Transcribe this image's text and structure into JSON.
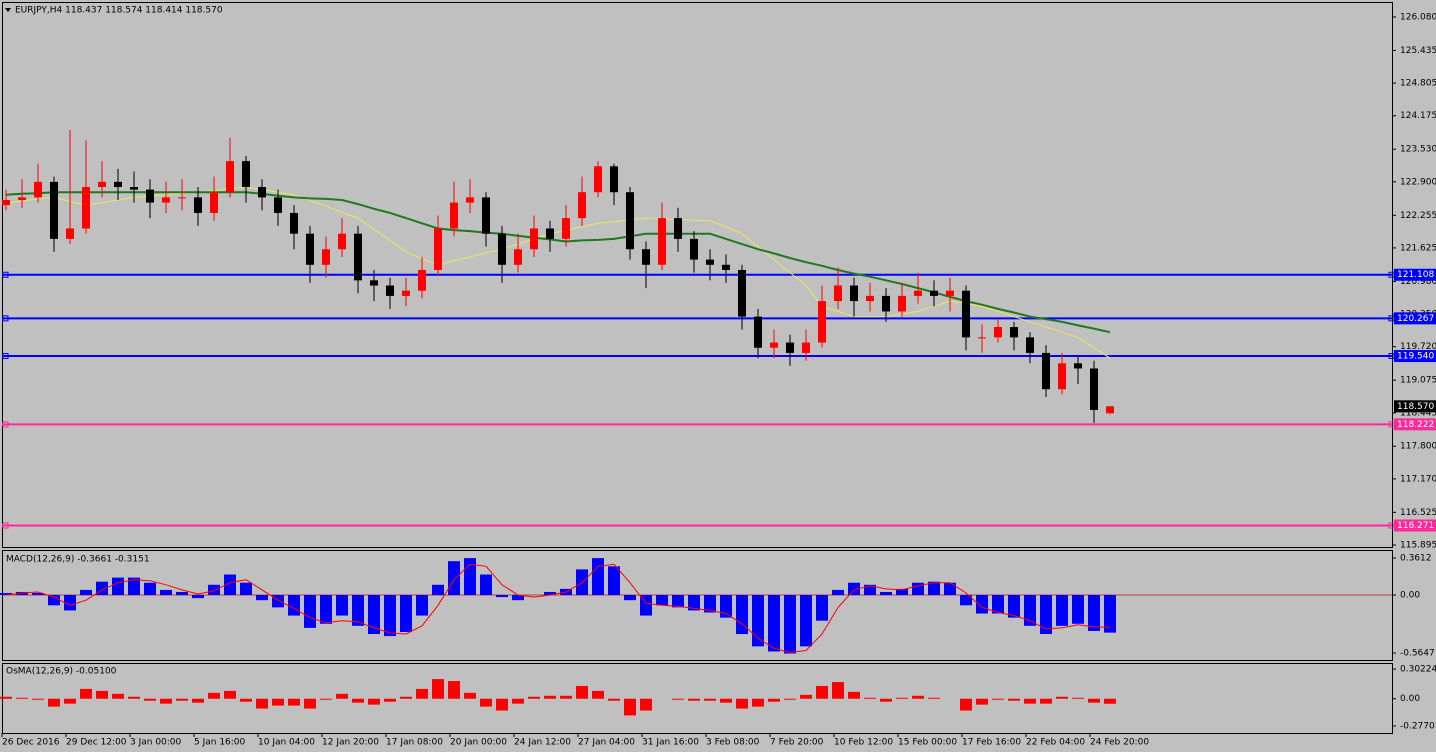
{
  "chart_data": [
    {
      "type": "candlestick",
      "title": "EURJPY,H4  118.437 118.574 118.414 118.570",
      "categories": [
        "26 Dec 2016",
        null,
        null,
        null,
        "29 Dec 12:00",
        null,
        null,
        null,
        "3 Jan 00:00",
        null,
        null,
        null,
        "5 Jan 16:00",
        null,
        null,
        null,
        "10 Jan 04:00",
        null,
        null,
        null,
        "12 Jan 20:00",
        null,
        null,
        null,
        "17 Jan 08:00",
        null,
        null,
        null,
        "20 Jan 00:00",
        null,
        null,
        null,
        "24 Jan 12:00",
        null,
        null,
        null,
        "27 Jan 04:00",
        null,
        null,
        null,
        "31 Jan 16:00",
        null,
        null,
        null,
        "3 Feb 08:00",
        null,
        null,
        null,
        "7 Feb 20:00",
        null,
        null,
        null,
        "10 Feb 12:00",
        null,
        null,
        null,
        "15 Feb 00:00",
        null,
        null,
        null,
        "17 Feb 16:00",
        null,
        null,
        null,
        "22 Feb 04:00",
        null,
        null,
        null,
        "24 Feb 20:00",
        null
      ],
      "open": [
        122.45,
        122.55,
        122.6,
        122.9,
        121.8,
        122.0,
        122.8,
        122.9,
        122.8,
        122.75,
        122.5,
        122.6,
        122.6,
        122.3,
        122.7,
        123.3,
        122.8,
        122.6,
        122.3,
        121.9,
        121.3,
        121.6,
        121.9,
        121.0,
        120.9,
        120.7,
        120.8,
        121.2,
        122.0,
        122.5,
        122.6,
        121.9,
        121.3,
        121.6,
        122.0,
        121.8,
        122.2,
        122.7,
        123.2,
        122.7,
        121.6,
        121.3,
        122.2,
        121.8,
        121.4,
        121.3,
        121.2,
        120.3,
        119.7,
        119.8,
        119.6,
        119.8,
        120.6,
        120.9,
        120.6,
        120.7,
        120.4,
        120.7,
        120.8,
        120.7,
        120.8,
        119.9,
        119.9,
        120.1,
        119.9,
        119.6,
        118.9,
        119.4,
        119.3,
        118.437
      ],
      "high": [
        122.75,
        122.95,
        123.25,
        123.0,
        123.9,
        123.7,
        123.3,
        123.15,
        123.1,
        122.95,
        122.9,
        122.95,
        122.8,
        123.0,
        123.75,
        123.4,
        122.95,
        122.75,
        122.45,
        122.05,
        121.85,
        122.2,
        122.05,
        121.2,
        121.05,
        121.05,
        121.45,
        122.25,
        122.9,
        122.95,
        122.7,
        122.05,
        121.9,
        122.25,
        122.15,
        122.45,
        123.0,
        123.3,
        123.25,
        122.8,
        121.75,
        122.5,
        122.4,
        121.95,
        121.6,
        121.5,
        121.3,
        120.45,
        120.05,
        119.95,
        120.05,
        120.9,
        121.25,
        121.05,
        120.95,
        120.85,
        120.95,
        121.15,
        121.0,
        121.05,
        120.9,
        120.15,
        120.25,
        120.2,
        120.0,
        119.75,
        119.6,
        119.55,
        119.45,
        118.574
      ],
      "low": [
        122.35,
        122.4,
        122.5,
        121.55,
        121.7,
        121.9,
        122.6,
        122.55,
        122.5,
        122.2,
        122.3,
        122.35,
        122.05,
        122.15,
        122.6,
        122.5,
        122.35,
        122.05,
        121.6,
        120.95,
        121.05,
        121.45,
        120.75,
        120.6,
        120.45,
        120.5,
        120.65,
        121.1,
        121.85,
        122.3,
        121.65,
        120.95,
        121.15,
        121.45,
        121.55,
        121.65,
        122.05,
        122.6,
        122.45,
        121.4,
        120.85,
        121.2,
        121.55,
        121.15,
        121.0,
        120.95,
        120.05,
        119.5,
        119.5,
        119.35,
        119.45,
        119.7,
        120.45,
        120.3,
        120.4,
        120.2,
        120.3,
        120.55,
        120.5,
        120.4,
        119.65,
        119.6,
        119.8,
        119.65,
        119.4,
        118.75,
        118.8,
        119.0,
        118.25,
        118.414
      ],
      "close": [
        122.55,
        122.6,
        122.9,
        121.8,
        122.0,
        122.8,
        122.9,
        122.8,
        122.75,
        122.5,
        122.6,
        122.6,
        122.3,
        122.7,
        123.3,
        122.8,
        122.6,
        122.3,
        121.9,
        121.3,
        121.6,
        121.9,
        121.0,
        120.9,
        120.7,
        120.8,
        121.2,
        122.0,
        122.5,
        122.6,
        121.9,
        121.3,
        121.6,
        122.0,
        121.8,
        122.2,
        122.7,
        123.2,
        122.7,
        121.6,
        121.3,
        122.2,
        121.8,
        121.4,
        121.3,
        121.2,
        120.3,
        119.7,
        119.8,
        119.6,
        119.8,
        120.6,
        120.9,
        120.6,
        120.7,
        120.4,
        120.7,
        120.8,
        120.7,
        120.8,
        119.9,
        119.9,
        120.1,
        119.9,
        119.6,
        118.9,
        119.4,
        119.3,
        118.5,
        118.57
      ],
      "up_color": "#ff0000",
      "down_color": "#000000",
      "series": [
        {
          "color": "#e8e85a",
          "values": [
            122.5,
            122.53,
            122.57,
            122.6,
            122.52,
            122.45,
            122.5,
            122.55,
            122.6,
            122.63,
            122.65,
            122.68,
            122.7,
            122.73,
            122.77,
            122.8,
            122.75,
            122.7,
            122.65,
            122.54,
            122.43,
            122.31,
            122.2,
            121.98,
            121.77,
            121.55,
            121.42,
            121.3,
            121.38,
            121.45,
            121.53,
            121.6,
            121.7,
            121.8,
            121.9,
            121.97,
            122.03,
            122.1,
            122.13,
            122.17,
            122.2,
            122.19,
            122.18,
            122.16,
            122.15,
            122.03,
            121.9,
            121.65,
            121.4,
            121.15,
            120.9,
            120.5,
            120.4,
            120.3,
            120.3,
            120.3,
            120.35,
            120.4,
            120.5,
            120.6,
            120.55,
            120.5,
            120.4,
            120.3,
            120.2,
            120.1,
            120.0,
            119.9,
            119.7,
            119.5
          ]
        },
        {
          "color": "#1e7a1e",
          "values": [
            122.65,
            122.67,
            122.68,
            122.7,
            122.7,
            122.7,
            122.7,
            122.7,
            122.7,
            122.7,
            122.7,
            122.7,
            122.7,
            122.7,
            122.7,
            122.7,
            122.67,
            122.63,
            122.6,
            122.58,
            122.57,
            122.55,
            122.47,
            122.38,
            122.3,
            122.2,
            122.1,
            122.0,
            121.97,
            121.95,
            121.92,
            121.9,
            121.86,
            121.82,
            121.79,
            121.75,
            121.77,
            121.78,
            121.8,
            121.85,
            121.9,
            121.9,
            121.9,
            121.9,
            121.9,
            121.8,
            121.7,
            121.6,
            121.52,
            121.43,
            121.35,
            121.28,
            121.2,
            121.13,
            121.07,
            121.0,
            120.93,
            120.85,
            120.77,
            120.68,
            120.6,
            120.53,
            120.45,
            120.38,
            120.3,
            120.25,
            120.2,
            120.13,
            120.07,
            120.0
          ]
        }
      ],
      "levels": [
        {
          "value": 121.108,
          "color": "#0000ff"
        },
        {
          "value": 120.267,
          "color": "#0000ff"
        },
        {
          "value": 119.54,
          "label": "119.540",
          "color": "#0000ff"
        },
        {
          "value": 118.222,
          "color": "#ff2a9a"
        },
        {
          "value": 116.271,
          "color": "#ff2a9a"
        }
      ],
      "last": {
        "value": 118.57,
        "label": "118.570"
      },
      "ylim": [
        115.837,
        126.369
      ],
      "yticks": [
        {
          "value": 126.08,
          "label": "126.080"
        },
        125.435,
        124.805,
        124.175,
        {
          "value": 123.53,
          "label": "123.530"
        },
        {
          "value": 122.9,
          "label": "122.900"
        },
        122.255,
        121.625,
        {
          "value": 120.98,
          "label": "120.980"
        },
        {
          "value": 120.35,
          "label": "120.350"
        },
        {
          "value": 119.72,
          "label": "119.720"
        },
        119.075,
        118.445,
        {
          "value": 117.8,
          "label": "117.800"
        },
        {
          "value": 117.17,
          "label": "117.170"
        },
        116.525,
        115.895
      ]
    },
    {
      "type": "macd",
      "title": "MACD(12,26,9) -0.3661 -0.3151",
      "color": "#0000ff",
      "values": [
        0.02,
        0.03,
        0.02,
        -0.1,
        -0.15,
        0.05,
        0.13,
        0.17,
        0.17,
        0.12,
        0.05,
        0.03,
        -0.03,
        0.1,
        0.2,
        0.12,
        -0.05,
        -0.12,
        -0.2,
        -0.32,
        -0.28,
        -0.2,
        -0.3,
        -0.38,
        -0.4,
        -0.36,
        -0.2,
        0.1,
        0.33,
        0.36,
        0.2,
        -0.02,
        -0.05,
        0.0,
        0.03,
        0.06,
        0.25,
        0.36,
        0.28,
        -0.05,
        -0.2,
        -0.1,
        -0.12,
        -0.15,
        -0.17,
        -0.22,
        -0.38,
        -0.5,
        -0.55,
        -0.57,
        -0.5,
        -0.25,
        0.05,
        0.12,
        0.1,
        0.03,
        0.06,
        0.12,
        0.13,
        0.12,
        -0.1,
        -0.18,
        -0.18,
        -0.22,
        -0.3,
        -0.38,
        -0.3,
        -0.28,
        -0.35,
        -0.3661
      ],
      "signal": {
        "color": "#ff0000",
        "values": [
          0.0,
          0.02,
          0.03,
          -0.02,
          -0.1,
          -0.05,
          0.05,
          0.12,
          0.15,
          0.14,
          0.1,
          0.05,
          0.01,
          0.04,
          0.12,
          0.15,
          0.05,
          -0.05,
          -0.13,
          -0.22,
          -0.27,
          -0.25,
          -0.26,
          -0.32,
          -0.37,
          -0.38,
          -0.3,
          -0.1,
          0.15,
          0.3,
          0.28,
          0.1,
          0.0,
          -0.02,
          0.0,
          0.03,
          0.12,
          0.28,
          0.3,
          0.12,
          -0.08,
          -0.1,
          -0.11,
          -0.13,
          -0.15,
          -0.18,
          -0.28,
          -0.42,
          -0.52,
          -0.56,
          -0.54,
          -0.38,
          -0.12,
          0.05,
          0.09,
          0.06,
          0.05,
          0.09,
          0.12,
          0.12,
          0.02,
          -0.12,
          -0.17,
          -0.2,
          -0.25,
          -0.33,
          -0.32,
          -0.29,
          -0.31,
          -0.3151
        ]
      },
      "ylim": [
        -0.633,
        0.439
      ],
      "yticks": [
        0.3612,
        {
          "value": 0,
          "label": "0.00"
        },
        -0.5647
      ]
    },
    {
      "type": "bar",
      "title": "OsMA(12,26,9) -0.05100",
      "color": "#ff0000",
      "values": [
        0.02,
        0.01,
        -0.01,
        -0.08,
        -0.05,
        0.1,
        0.08,
        0.05,
        0.02,
        -0.02,
        -0.05,
        -0.02,
        -0.04,
        0.06,
        0.08,
        -0.03,
        -0.1,
        -0.07,
        -0.07,
        -0.1,
        -0.01,
        0.05,
        -0.04,
        -0.06,
        -0.03,
        0.02,
        0.1,
        0.2,
        0.18,
        0.06,
        -0.08,
        -0.12,
        -0.05,
        0.02,
        0.03,
        0.03,
        0.13,
        0.08,
        -0.02,
        -0.17,
        -0.12,
        0.0,
        -0.01,
        -0.02,
        -0.02,
        -0.04,
        -0.1,
        -0.08,
        -0.03,
        -0.01,
        0.04,
        0.13,
        0.17,
        0.07,
        0.01,
        -0.03,
        0.01,
        0.03,
        0.01,
        0.0,
        -0.12,
        -0.06,
        -0.01,
        -0.02,
        -0.05,
        -0.05,
        0.02,
        0.01,
        -0.04,
        -0.051
      ],
      "ylim": [
        -0.349,
        0.364
      ],
      "yticks": [
        0.30224,
        {
          "value": 0,
          "label": "0.00"
        },
        -0.27701
      ]
    }
  ]
}
